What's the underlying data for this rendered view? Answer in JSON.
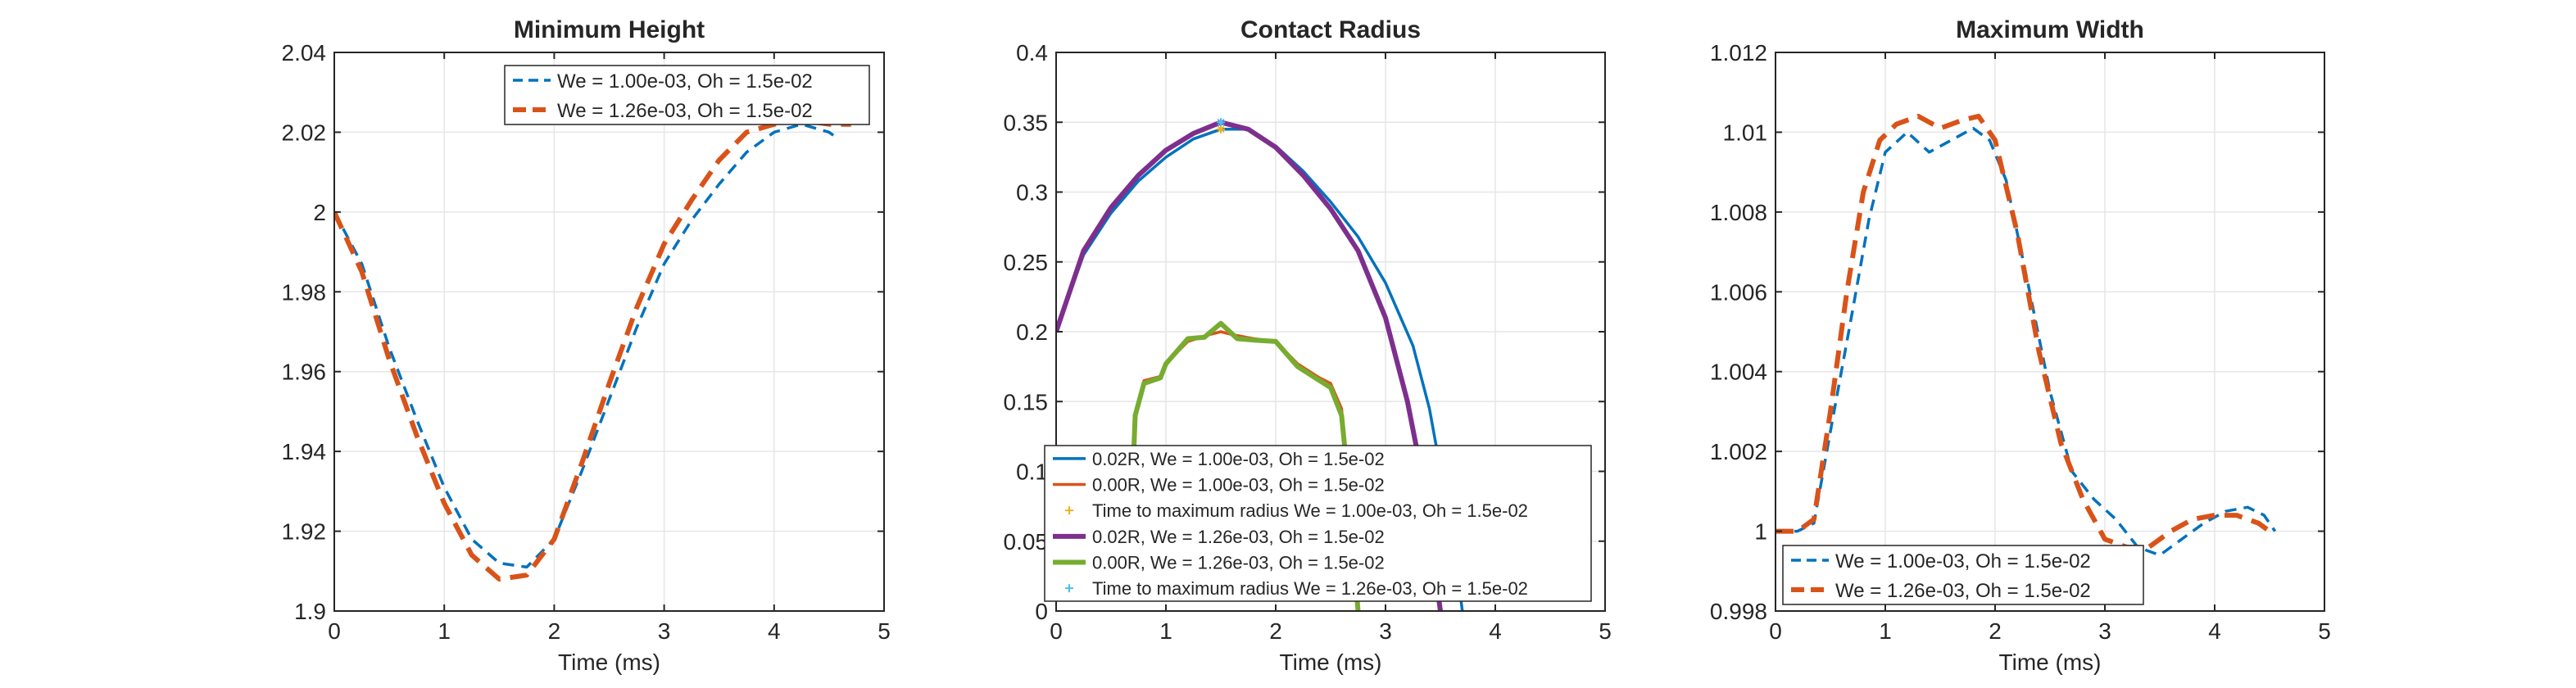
{
  "chart_data": [
    {
      "type": "line",
      "title": "Minimum Height",
      "xlabel": "Time (ms)",
      "ylabel": "",
      "xlim": [
        0,
        5
      ],
      "ylim": [
        1.9,
        2.04
      ],
      "xticks": [
        "0",
        "1",
        "2",
        "3",
        "4",
        "5"
      ],
      "yticks": [
        "1.9",
        "1.92",
        "1.94",
        "1.96",
        "1.98",
        "2",
        "2.02",
        "2.04"
      ],
      "grid": true,
      "legend_position": "top-right",
      "series": [
        {
          "name": "We = 1.00e-03, Oh = 1.5e-02",
          "color": "#0072BD",
          "style": "dashed",
          "x": [
            0,
            0.25,
            0.5,
            0.75,
            1.0,
            1.25,
            1.5,
            1.75,
            2.0,
            2.25,
            2.5,
            2.75,
            3.0,
            3.25,
            3.5,
            3.75,
            4.0,
            4.25,
            4.5,
            4.55
          ],
          "y": [
            2.0,
            1.987,
            1.966,
            1.948,
            1.931,
            1.918,
            1.912,
            1.911,
            1.918,
            1.935,
            1.953,
            1.971,
            1.987,
            1.998,
            2.007,
            2.015,
            2.02,
            2.022,
            2.02,
            2.019
          ]
        },
        {
          "name": "We = 1.26e-03, Oh = 1.5e-02",
          "color": "#D95319",
          "style": "dashed-thick",
          "x": [
            0,
            0.25,
            0.5,
            0.75,
            1.0,
            1.25,
            1.5,
            1.75,
            2.0,
            2.25,
            2.5,
            2.75,
            3.0,
            3.25,
            3.5,
            3.75,
            4.0,
            4.25,
            4.5,
            4.7
          ],
          "y": [
            2.0,
            1.985,
            1.963,
            1.944,
            1.927,
            1.914,
            1.908,
            1.909,
            1.918,
            1.937,
            1.957,
            1.976,
            1.992,
            2.003,
            2.013,
            2.02,
            2.022,
            2.023,
            2.022,
            2.022
          ]
        }
      ]
    },
    {
      "type": "line",
      "title": "Contact Radius",
      "xlabel": "Time (ms)",
      "ylabel": "",
      "xlim": [
        0,
        5
      ],
      "ylim": [
        0,
        0.4
      ],
      "xticks": [
        "0",
        "1",
        "2",
        "3",
        "4",
        "5"
      ],
      "yticks": [
        "0",
        "0.05",
        "0.1",
        "0.15",
        "0.2",
        "0.25",
        "0.3",
        "0.35",
        "0.4"
      ],
      "grid": true,
      "legend_position": "bottom-left",
      "series": [
        {
          "name": "0.02R, We = 1.00e-03, Oh = 1.5e-02",
          "color": "#0072BD",
          "style": "solid",
          "x": [
            0,
            0.25,
            0.5,
            0.75,
            1.0,
            1.25,
            1.5,
            1.75,
            2.0,
            2.25,
            2.5,
            2.75,
            3.0,
            3.25,
            3.4,
            3.55,
            3.65,
            3.7
          ],
          "y": [
            0.2,
            0.255,
            0.285,
            0.308,
            0.325,
            0.338,
            0.345,
            0.345,
            0.333,
            0.315,
            0.293,
            0.268,
            0.235,
            0.19,
            0.145,
            0.08,
            0.03,
            0
          ]
        },
        {
          "name": "0.00R, We = 1.00e-03, Oh = 1.5e-02",
          "color": "#D95319",
          "style": "solid",
          "x": [
            0.7,
            0.72,
            0.8,
            0.95,
            1.0,
            1.2,
            1.4,
            1.5,
            1.6,
            1.8,
            2.0,
            2.2,
            2.4,
            2.5,
            2.6,
            2.65,
            2.7,
            2.75
          ],
          "y": [
            0.1,
            0.14,
            0.165,
            0.168,
            0.177,
            0.193,
            0.198,
            0.2,
            0.198,
            0.195,
            0.193,
            0.177,
            0.167,
            0.163,
            0.145,
            0.1,
            0.05,
            0
          ]
        },
        {
          "name": "Time to maximum radius We = 1.00e-03, Oh = 1.5e-02",
          "color": "#EDB120",
          "style": "marker",
          "x": [
            1.5
          ],
          "y": [
            0.345
          ]
        },
        {
          "name": "0.02R, We = 1.26e-03, Oh = 1.5e-02",
          "color": "#7E2F8E",
          "style": "solid-thick",
          "x": [
            0,
            0.25,
            0.5,
            0.75,
            1.0,
            1.25,
            1.5,
            1.75,
            2.0,
            2.25,
            2.5,
            2.75,
            3.0,
            3.2,
            3.35,
            3.45,
            3.5
          ],
          "y": [
            0.2,
            0.258,
            0.289,
            0.312,
            0.33,
            0.342,
            0.35,
            0.345,
            0.332,
            0.312,
            0.288,
            0.258,
            0.21,
            0.15,
            0.09,
            0.03,
            0
          ]
        },
        {
          "name": "0.00R, We = 1.26e-03, Oh = 1.5e-02",
          "color": "#77AC30",
          "style": "solid-thick",
          "x": [
            0.7,
            0.72,
            0.8,
            0.95,
            1.0,
            1.2,
            1.35,
            1.5,
            1.65,
            1.8,
            2.0,
            2.2,
            2.4,
            2.5,
            2.6,
            2.65,
            2.7,
            2.75
          ],
          "y": [
            0.1,
            0.14,
            0.163,
            0.167,
            0.177,
            0.195,
            0.196,
            0.206,
            0.195,
            0.194,
            0.193,
            0.175,
            0.165,
            0.16,
            0.14,
            0.1,
            0.05,
            0
          ]
        },
        {
          "name": "Time to maximum radius We = 1.26e-03, Oh = 1.5e-02",
          "color": "#4DBEEE",
          "style": "marker",
          "x": [
            1.5
          ],
          "y": [
            0.35
          ]
        }
      ]
    },
    {
      "type": "line",
      "title": "Maximum Width",
      "xlabel": "Time (ms)",
      "ylabel": "",
      "xlim": [
        0,
        5
      ],
      "ylim": [
        0.998,
        1.012
      ],
      "xticks": [
        "0",
        "1",
        "2",
        "3",
        "4",
        "5"
      ],
      "yticks": [
        "0.998",
        "1",
        "1.002",
        "1.004",
        "1.006",
        "1.008",
        "1.01",
        "1.012"
      ],
      "grid": true,
      "legend_position": "bottom-left",
      "series": [
        {
          "name": "We = 1.00e-03, Oh = 1.5e-02",
          "color": "#0072BD",
          "style": "dashed",
          "x": [
            0,
            0.2,
            0.35,
            0.5,
            0.7,
            0.85,
            1.0,
            1.2,
            1.4,
            1.6,
            1.8,
            1.95,
            2.1,
            2.3,
            2.5,
            2.7,
            2.9,
            3.1,
            3.3,
            3.5,
            3.7,
            3.9,
            4.1,
            4.3,
            4.45,
            4.55
          ],
          "y": [
            1.0,
            1.0,
            1.0002,
            1.0025,
            1.0055,
            1.0078,
            1.0095,
            1.01,
            1.0095,
            1.0098,
            1.0101,
            1.0098,
            1.0088,
            1.0062,
            1.0035,
            1.0015,
            1.0008,
            1.0003,
            0.9996,
            0.9994,
            0.9998,
            1.0002,
            1.0005,
            1.0006,
            1.0004,
            1.0
          ]
        },
        {
          "name": "We = 1.26e-03, Oh = 1.5e-02",
          "color": "#D95319",
          "style": "dashed-thick",
          "x": [
            0,
            0.2,
            0.35,
            0.5,
            0.65,
            0.8,
            0.95,
            1.1,
            1.3,
            1.5,
            1.7,
            1.85,
            2.0,
            2.2,
            2.4,
            2.6,
            2.8,
            3.0,
            3.2,
            3.4,
            3.6,
            3.8,
            4.0,
            4.2,
            4.4,
            4.5
          ],
          "y": [
            1.0,
            1.0,
            1.0003,
            1.003,
            1.006,
            1.0085,
            1.0098,
            1.0102,
            1.0104,
            1.0101,
            1.0103,
            1.0104,
            1.0098,
            1.0075,
            1.0045,
            1.0022,
            1.0008,
            0.9998,
            0.9996,
            0.9996,
            1.0,
            1.0003,
            1.0004,
            1.0004,
            1.0002,
            1.0
          ]
        }
      ]
    }
  ]
}
